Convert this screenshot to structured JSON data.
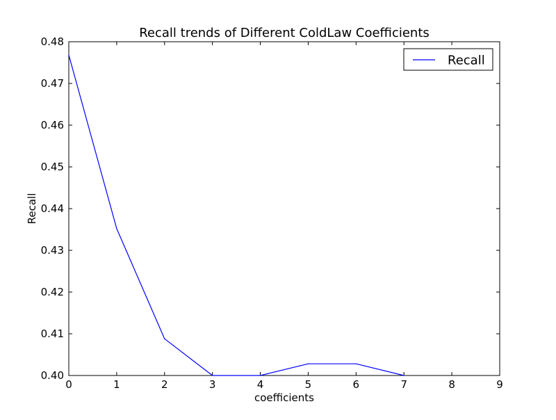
{
  "chart_data": {
    "type": "line",
    "title": "Recall trends of Different ColdLaw Coefficients",
    "xlabel": "coefficients",
    "ylabel": "Recall",
    "xlim": [
      0,
      9
    ],
    "ylim": [
      0.4,
      0.48
    ],
    "xticks": [
      "0",
      "1",
      "2",
      "3",
      "4",
      "5",
      "6",
      "7",
      "8",
      "9"
    ],
    "yticks": [
      "0.40",
      "0.41",
      "0.42",
      "0.43",
      "0.44",
      "0.45",
      "0.46",
      "0.47",
      "0.48"
    ],
    "grid": false,
    "legend": {
      "position": "top-right"
    },
    "series": [
      {
        "name": "Recall",
        "color": "#0000ff",
        "x": [
          0,
          1,
          2,
          3,
          4,
          5,
          6,
          7
        ],
        "y": [
          0.4768,
          0.4352,
          0.4088,
          0.4,
          0.4,
          0.4028,
          0.4028,
          0.4
        ]
      }
    ]
  }
}
